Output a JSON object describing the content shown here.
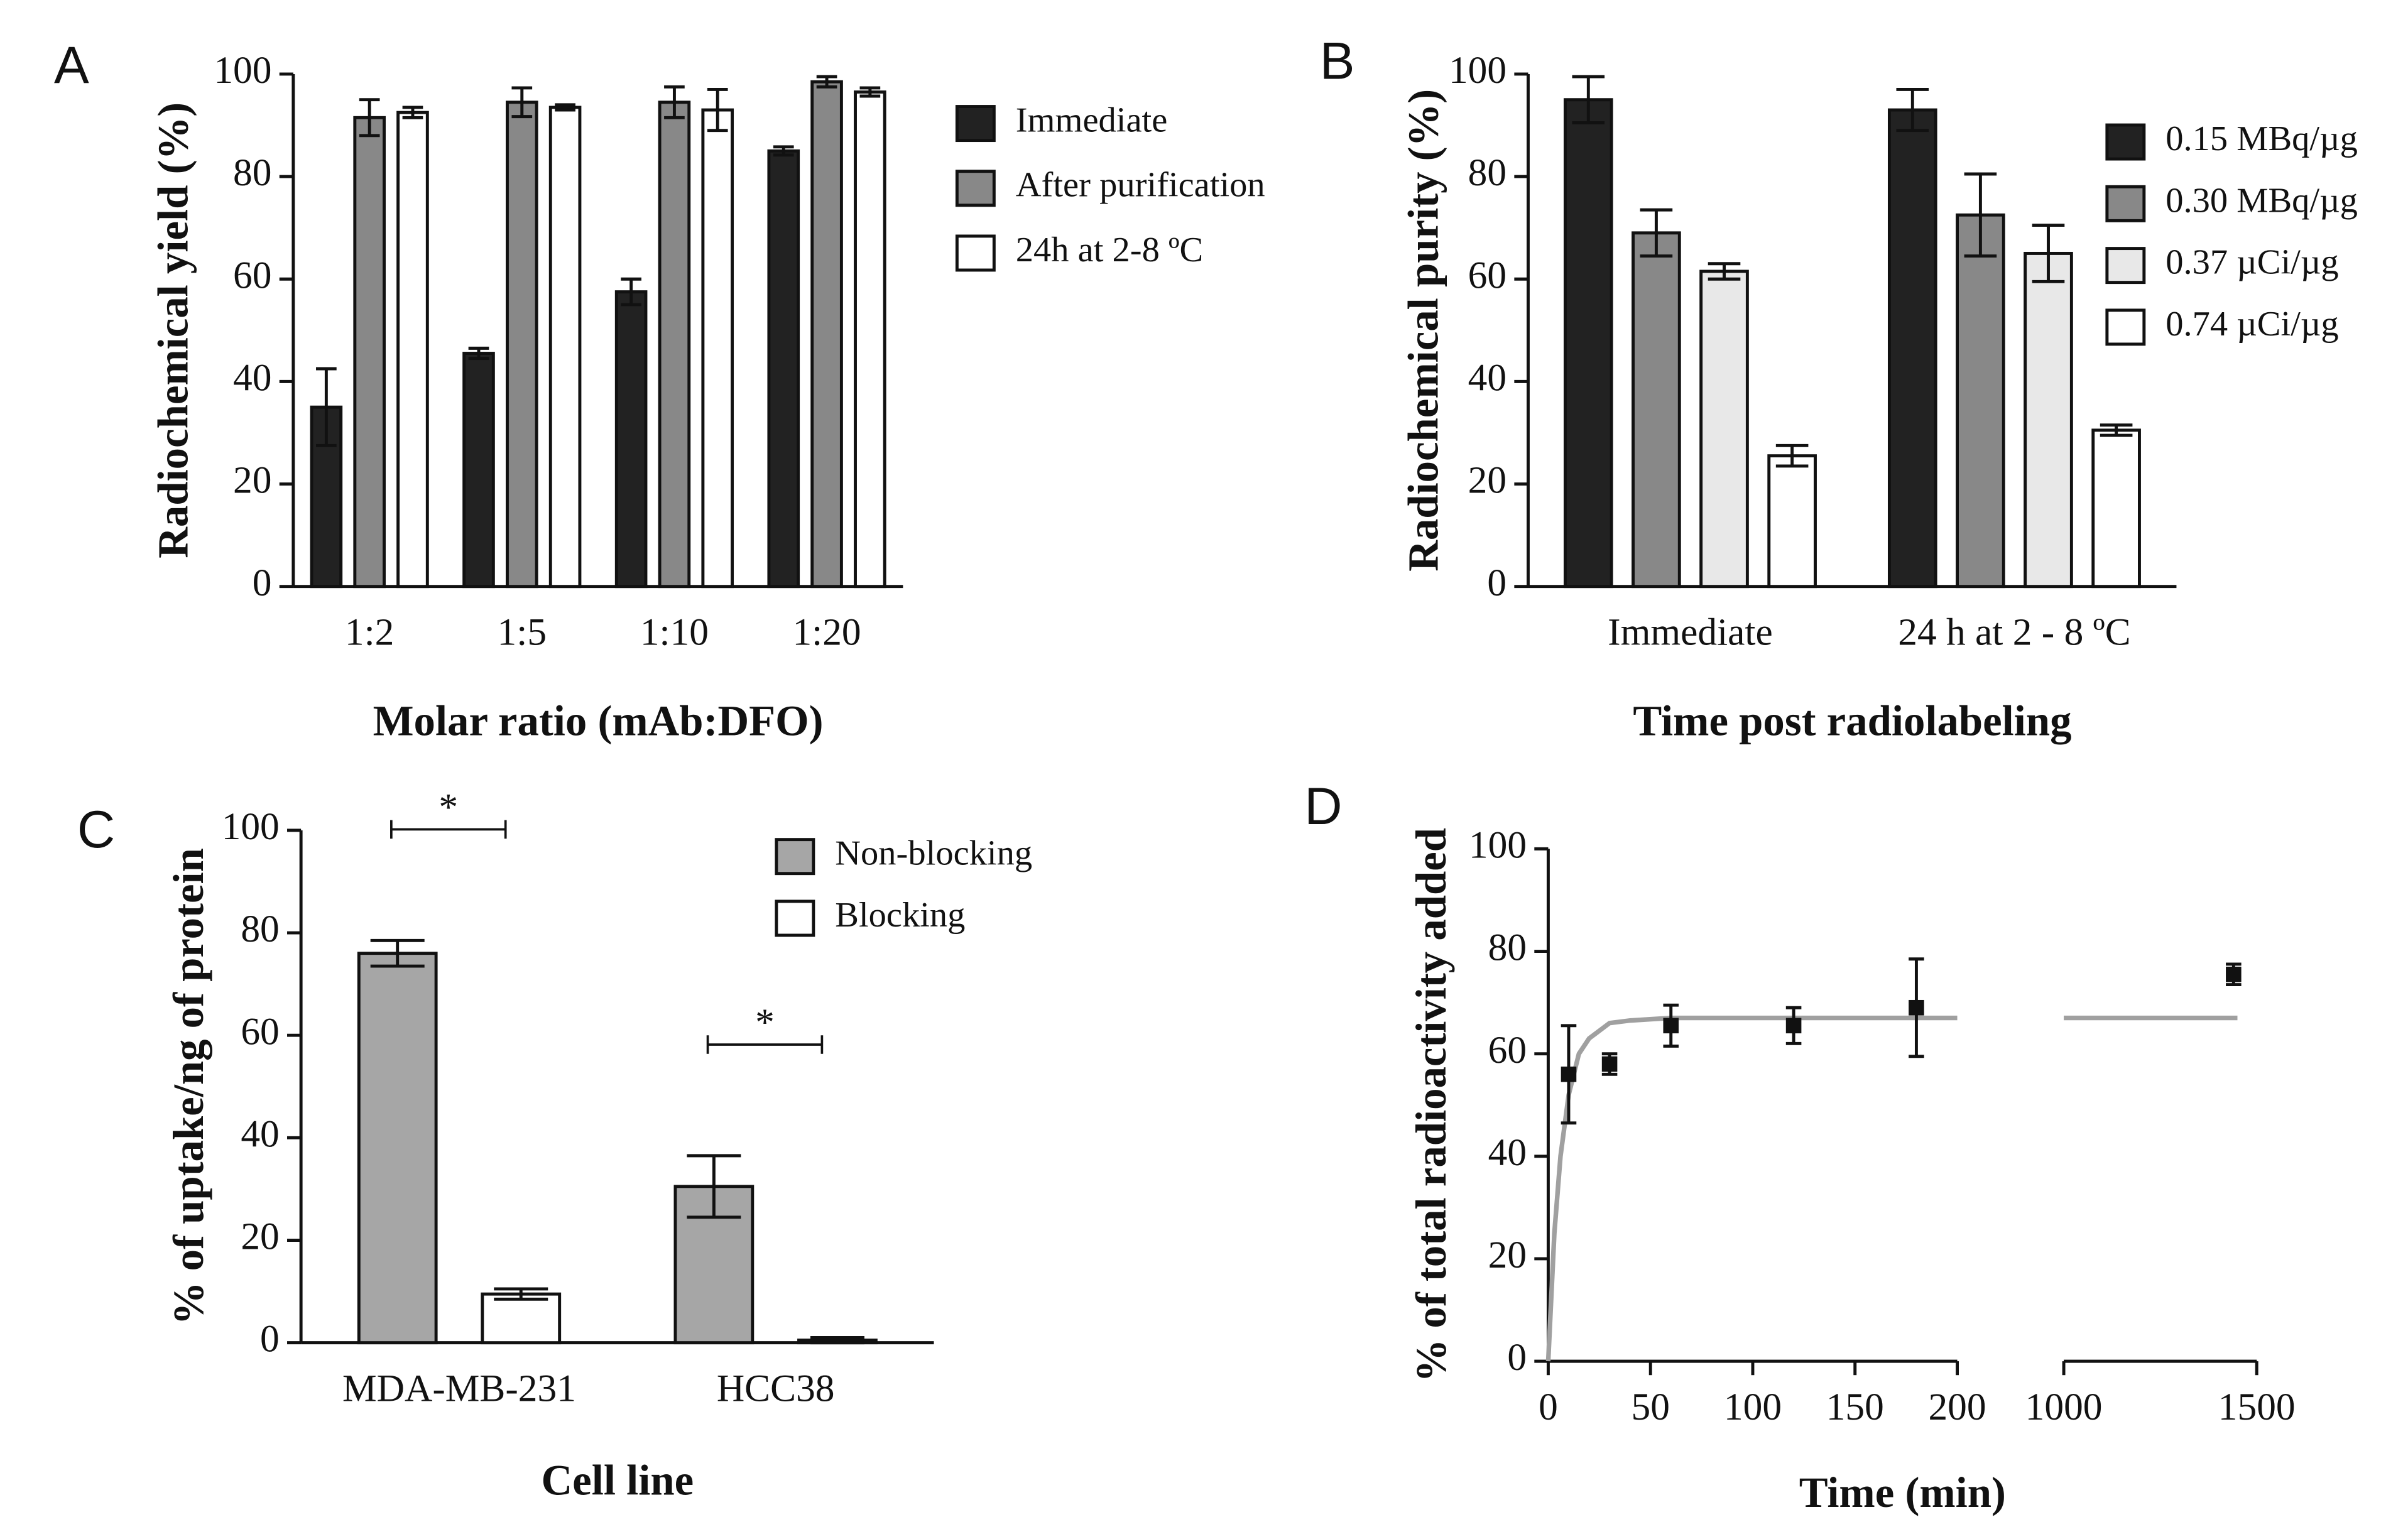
{
  "chart_data": [
    {
      "type": "bar",
      "title": "A",
      "ylabel": "Radiochemical yield (%)",
      "xlabel": "Molar ratio (mAb:DFO)",
      "categories": [
        "1:2",
        "1:5",
        "1:10",
        "1:20"
      ],
      "series": [
        {
          "name": "Immediate",
          "color": "#222222",
          "values": [
            35,
            45.5,
            57.5,
            85
          ],
          "errors": [
            7.5,
            1,
            2.5,
            0.8
          ]
        },
        {
          "name": "After purification",
          "color": "#888888",
          "values": [
            91.5,
            94.5,
            94.5,
            98.5
          ],
          "errors": [
            3.5,
            2.8,
            3,
            1
          ]
        },
        {
          "name": "24h at 2-8 ºC",
          "color": "#ffffff",
          "values": [
            92.5,
            93.5,
            93,
            96.5
          ],
          "errors": [
            1,
            0.5,
            4,
            0.8
          ]
        }
      ],
      "ylim": [
        0,
        100
      ],
      "yticks": [
        0,
        20,
        40,
        60,
        80,
        100
      ]
    },
    {
      "type": "bar",
      "title": "B",
      "ylabel": "Radiochemical purity (%)",
      "xlabel": "Time post radiolabeling",
      "categories": [
        "Immediate",
        "24 h at 2 - 8 ºC"
      ],
      "series": [
        {
          "name": "0.15 MBq/µg",
          "color": "#222222",
          "values": [
            95,
            93
          ],
          "errors": [
            4.5,
            4
          ]
        },
        {
          "name": "0.30 MBq/µg",
          "color": "#888888",
          "values": [
            69,
            72.5
          ],
          "errors": [
            4.5,
            8
          ]
        },
        {
          "name": "0.37 µCi/µg",
          "color": "#e8e8e8",
          "values": [
            61.5,
            65
          ],
          "errors": [
            1.5,
            5.5
          ]
        },
        {
          "name": "0.74 µCi/µg",
          "color": "#ffffff",
          "values": [
            25.5,
            30.5
          ],
          "errors": [
            2,
            1
          ]
        }
      ],
      "ylim": [
        0,
        100
      ],
      "yticks": [
        0,
        20,
        40,
        60,
        80,
        100
      ]
    },
    {
      "type": "bar",
      "title": "C",
      "ylabel": "% of uptake/ng of protein",
      "xlabel": "Cell line",
      "categories": [
        "MDA-MB-231",
        "HCC38"
      ],
      "series": [
        {
          "name": "Non-blocking",
          "color": "#a6a6a6",
          "values": [
            76,
            30.5
          ],
          "errors": [
            2.5,
            6
          ]
        },
        {
          "name": "Blocking",
          "color": "#ffffff",
          "values": [
            9.5,
            0.5
          ],
          "errors": [
            1,
            0.5
          ]
        }
      ],
      "annotations": [
        "*",
        "*"
      ],
      "ylim": [
        0,
        100
      ],
      "yticks": [
        0,
        20,
        40,
        60,
        80,
        100
      ]
    },
    {
      "type": "scatter",
      "title": "D",
      "ylabel": "% of total radioactivity added",
      "xlabel": "Time (min)",
      "x": [
        10,
        30,
        60,
        120,
        180,
        1440
      ],
      "values": [
        56,
        58,
        65.5,
        65.5,
        69,
        75.5
      ],
      "errors": [
        9.5,
        2,
        4,
        3.5,
        9.5,
        2
      ],
      "color": "#111111",
      "fit": {
        "color": "#a0a0a0",
        "x": [
          0,
          3,
          6,
          10,
          15,
          20,
          30,
          40,
          60,
          100,
          200,
          null,
          1000,
          1450
        ],
        "values": [
          0,
          25,
          40,
          52,
          60,
          63,
          66,
          66.5,
          67,
          67,
          67,
          null,
          67,
          67
        ]
      },
      "xlim_segments": [
        [
          0,
          200
        ],
        [
          1000,
          1500
        ]
      ],
      "xticks": [
        0,
        50,
        100,
        150,
        200,
        1000,
        1500
      ],
      "ylim": [
        0,
        100
      ],
      "yticks": [
        0,
        20,
        40,
        60,
        80,
        100
      ]
    }
  ]
}
